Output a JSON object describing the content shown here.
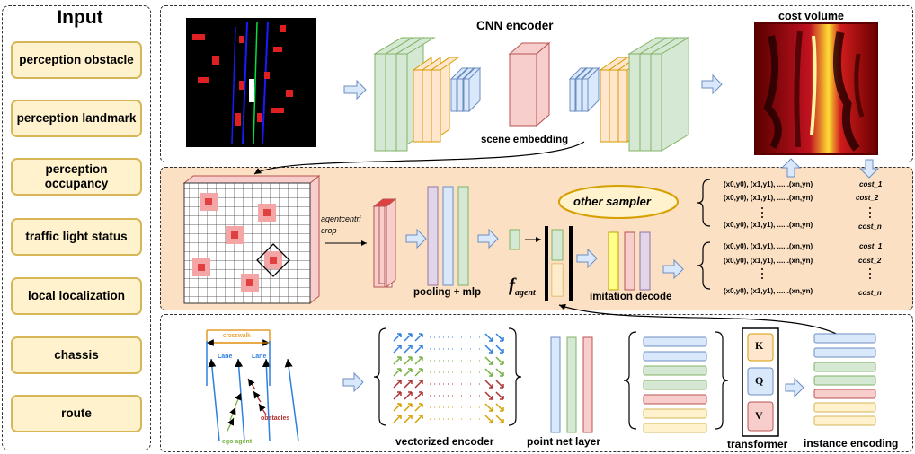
{
  "input": {
    "title": "Input",
    "items": [
      "perception obstacle",
      "perception landmark",
      "perception occupancy",
      "traffic light status",
      "local localization",
      "chassis",
      "route"
    ]
  },
  "top": {
    "encoder_label": "CNN encoder",
    "cost_volume_label": "cost volume",
    "scene_embedding_label": "scene embedding"
  },
  "middle": {
    "crop_label": "agentcentri crop",
    "pooling_label": "pooling + mlp",
    "f_agent_label": "f",
    "f_agent_sub": "agent",
    "other_sampler_label": "other sampler",
    "imitation_label": "imitation decode",
    "traj_text": "(x0,y0), (x1,y1), ......(xn,yn)",
    "costs": [
      "cost_1",
      "cost_2",
      "cost_n"
    ]
  },
  "bottom": {
    "crosswalk_label": "crosswalk",
    "lane_label": "Lane",
    "obstacles_label": "obstacles",
    "ego_label": "ego agent",
    "vectorized_label": "vectorized encoder",
    "pointnet_label": "point net layer",
    "transformer_label": "transformer",
    "k_label": "K",
    "q_label": "Q",
    "v_label": "V",
    "instance_label": "instance encoding"
  },
  "colors": {
    "green": "#d5e8d4",
    "green_edge": "#82b366",
    "orange": "#ffe6cc",
    "orange_edge": "#d79b00",
    "blue": "#dae8fc",
    "blue_edge": "#6c8ebf",
    "red": "#f8cecc",
    "red_edge": "#b85450",
    "yellow": "#fff2cc",
    "yellow_edge": "#d6b656",
    "purple": "#e1d5e7",
    "purple_edge": "#9673a6",
    "panel_orange": "#fbe0c3"
  }
}
